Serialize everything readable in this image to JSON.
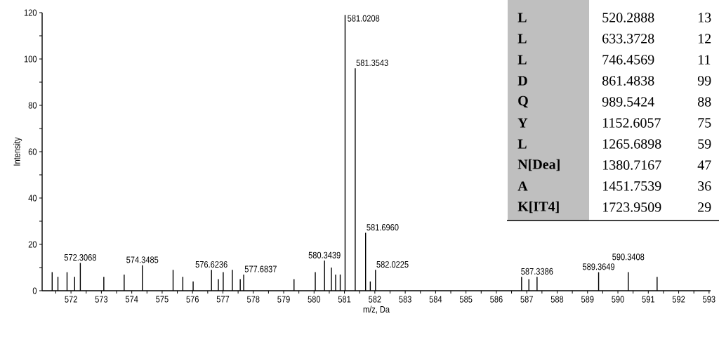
{
  "chart_data": [
    {
      "type": "bar",
      "xlabel": "m/z, Da",
      "ylabel": "Intensity",
      "color": "#000000",
      "x": [
        571.38,
        571.57,
        571.87,
        572.12,
        572.3068,
        573.08,
        573.75,
        574.3485,
        575.36,
        575.68,
        576.02,
        576.6236,
        576.85,
        577.01,
        577.31,
        577.57,
        577.6837,
        579.34,
        580.04,
        580.3439,
        580.57,
        580.71,
        580.86,
        581.0208,
        581.3543,
        581.696,
        581.85,
        582.0225,
        586.83,
        587.07,
        587.3386,
        589.3649,
        590.3408,
        591.29
      ],
      "values": [
        8,
        6,
        8,
        6,
        12,
        6,
        7,
        11,
        9,
        6,
        4,
        9,
        5,
        8,
        9,
        5,
        7,
        5,
        8,
        13,
        10,
        7,
        7,
        119,
        96,
        25,
        4,
        9,
        6,
        5,
        6,
        8,
        8,
        6
      ],
      "xlim": [
        571.05,
        593.05
      ],
      "ylim": [
        0,
        120
      ],
      "xticks": [
        572,
        573,
        574,
        575,
        576,
        577,
        578,
        579,
        580,
        581,
        582,
        583,
        584,
        585,
        586,
        587,
        588,
        589,
        590,
        591,
        592,
        593,
        {
          "value": 571.5,
          "label": null
        },
        {
          "value": 572.5,
          "label": null
        },
        {
          "value": 573.5,
          "label": null
        },
        {
          "value": 574.5,
          "label": null
        },
        {
          "value": 575.5,
          "label": null
        },
        {
          "value": 576.5,
          "label": null
        },
        {
          "value": 577.5,
          "label": null
        },
        {
          "value": 578.5,
          "label": null
        },
        {
          "value": 579.5,
          "label": null
        },
        {
          "value": 580.5,
          "label": null
        },
        {
          "value": 581.5,
          "label": null
        },
        {
          "value": 582.5,
          "label": null
        },
        {
          "value": 583.5,
          "label": null
        },
        {
          "value": 584.5,
          "label": null
        },
        {
          "value": 585.5,
          "label": null
        },
        {
          "value": 586.5,
          "label": null
        },
        {
          "value": 587.5,
          "label": null
        },
        {
          "value": 588.5,
          "label": null
        },
        {
          "value": 589.5,
          "label": null
        },
        {
          "value": 590.5,
          "label": null
        },
        {
          "value": 591.5,
          "label": null
        },
        {
          "value": 592.5,
          "label": null
        }
      ],
      "yticks": [
        0,
        20,
        40,
        60,
        80,
        100,
        120,
        {
          "value": 10,
          "label": null
        },
        {
          "value": 30,
          "label": null
        },
        {
          "value": 50,
          "label": null
        },
        {
          "value": 70,
          "label": null
        },
        {
          "value": 90,
          "label": null
        },
        {
          "value": 110,
          "label": null
        }
      ],
      "annotations": [
        {
          "text": "572.3068",
          "x": 572.3068,
          "y": 12
        },
        {
          "text": "574.3485",
          "x": 574.3485,
          "y": 11
        },
        {
          "text": "576.6236",
          "x": 576.6236,
          "y": 9
        },
        {
          "text": "577.6837",
          "x": 577.6837,
          "y": 7
        },
        {
          "text": "580.3439",
          "x": 580.3439,
          "y": 13
        },
        {
          "text": "581.0208",
          "x": 581.0208,
          "y": 119
        },
        {
          "text": "581.3543",
          "x": 581.3543,
          "y": 96
        },
        {
          "text": "581.6960",
          "x": 581.696,
          "y": 25
        },
        {
          "text": "582.0225",
          "x": 582.0225,
          "y": 9
        },
        {
          "text": "587.3386",
          "x": 587.3386,
          "y": 6
        },
        {
          "text": "589.3649",
          "x": 589.3649,
          "y": 8
        },
        {
          "text": "590.3408",
          "x": 590.3408,
          "y": 8
        }
      ]
    },
    {
      "type": "other",
      "annotations": [
        "L",
        "520.2888",
        "13",
        "L",
        "633.3728",
        "12",
        "L",
        "746.4569",
        "11",
        "D",
        "861.4838",
        "99",
        "Q",
        "989.5424",
        "88",
        "Y",
        "1152.6057",
        "75",
        "L",
        "1265.6898",
        "59",
        "N[Dea]",
        "1380.7167",
        "47",
        "A",
        "1451.7539",
        "36",
        "K[IT4]",
        "1723.9509",
        "29"
      ]
    }
  ]
}
